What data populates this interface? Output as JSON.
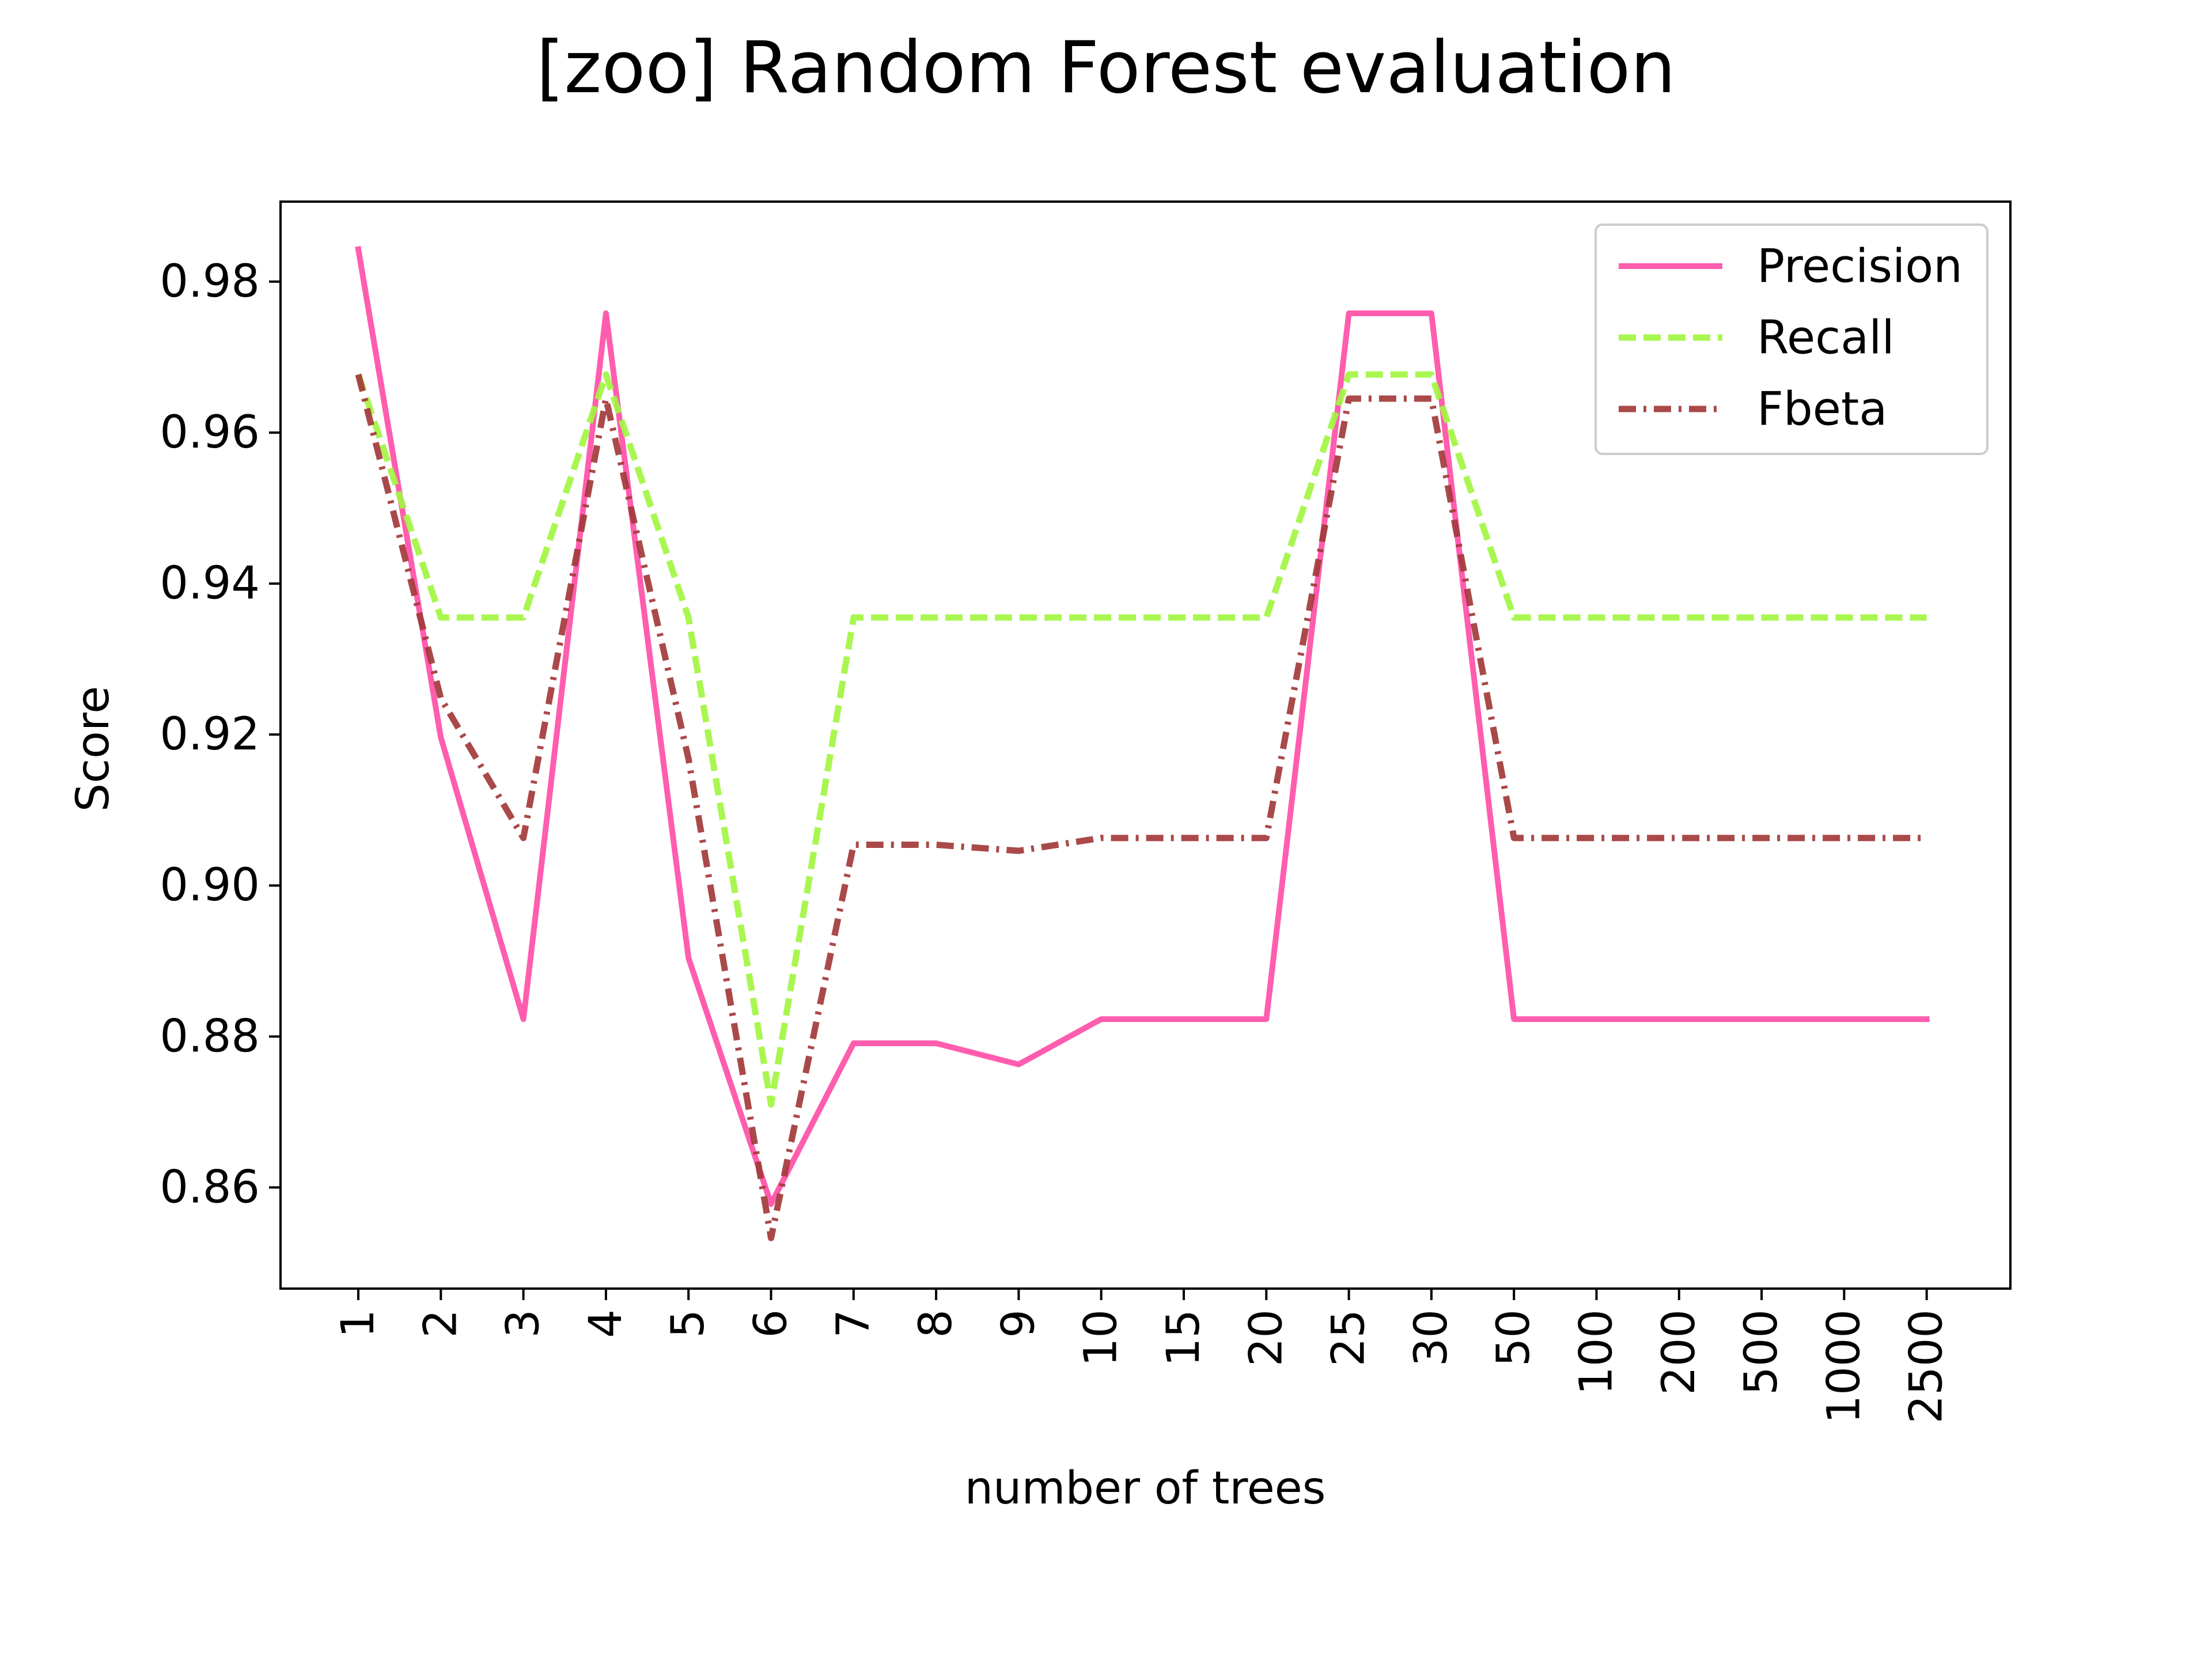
{
  "chart_data": {
    "type": "line",
    "title": "[zoo] Random Forest evaluation",
    "xlabel": "number of trees",
    "ylabel": "Score",
    "categories": [
      "1",
      "2",
      "3",
      "4",
      "5",
      "6",
      "7",
      "8",
      "9",
      "10",
      "15",
      "20",
      "25",
      "30",
      "50",
      "100",
      "200",
      "500",
      "1000",
      "2500"
    ],
    "y_ticks": [
      0.86,
      0.88,
      0.9,
      0.92,
      0.94,
      0.96,
      0.98
    ],
    "ylim": [
      0.8466,
      0.9906
    ],
    "grid": false,
    "legend_position": "top-right",
    "series": [
      {
        "name": "Precision",
        "color": "#ff4fa7",
        "style": "solid",
        "values": [
          0.9843,
          0.9196,
          0.8823,
          0.9758,
          0.8904,
          0.8578,
          0.8791,
          0.8791,
          0.8763,
          0.8823,
          0.8823,
          0.8823,
          0.9758,
          0.9758,
          0.8823,
          0.8823,
          0.8823,
          0.8823,
          0.8823,
          0.8823
        ]
      },
      {
        "name": "Recall",
        "color": "#a2f542",
        "style": "dashed",
        "values": [
          0.9677,
          0.9355,
          0.9355,
          0.9677,
          0.9355,
          0.871,
          0.9355,
          0.9355,
          0.9355,
          0.9355,
          0.9355,
          0.9355,
          0.9677,
          0.9677,
          0.9355,
          0.9355,
          0.9355,
          0.9355,
          0.9355,
          0.9355
        ]
      },
      {
        "name": "Fbeta",
        "color": "#a33a3a",
        "style": "dashdot",
        "values": [
          0.9677,
          0.9248,
          0.9063,
          0.9645,
          0.9168,
          0.8533,
          0.9054,
          0.9054,
          0.9046,
          0.9063,
          0.9063,
          0.9063,
          0.9645,
          0.9645,
          0.9063,
          0.9063,
          0.9063,
          0.9063,
          0.9063,
          0.9063
        ]
      }
    ]
  }
}
